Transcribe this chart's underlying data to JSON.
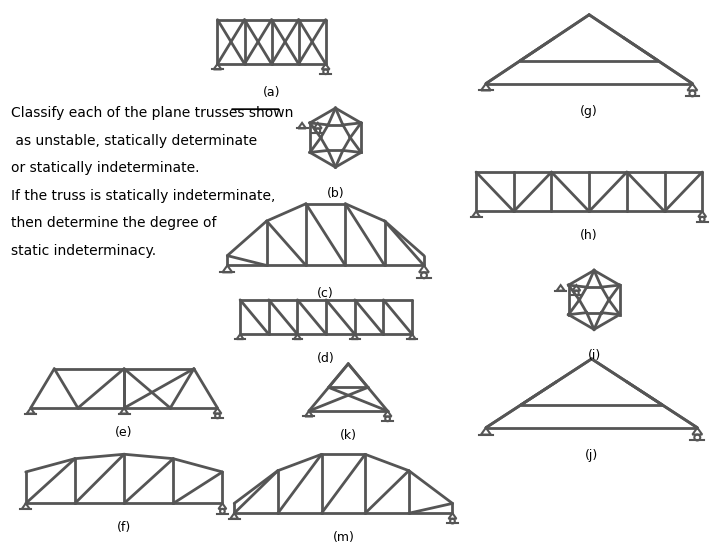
{
  "bg_color": "#ffffff",
  "line_color": "#555555",
  "lw": 2.0,
  "text_color": "#000000",
  "question_text": [
    "Classify each of the plane trusses shown",
    " as unstable, statically determinate",
    "or statically indeterminate.",
    "If the truss is statically indeterminate,",
    "then determine the degree of",
    "static indeterminacy."
  ]
}
